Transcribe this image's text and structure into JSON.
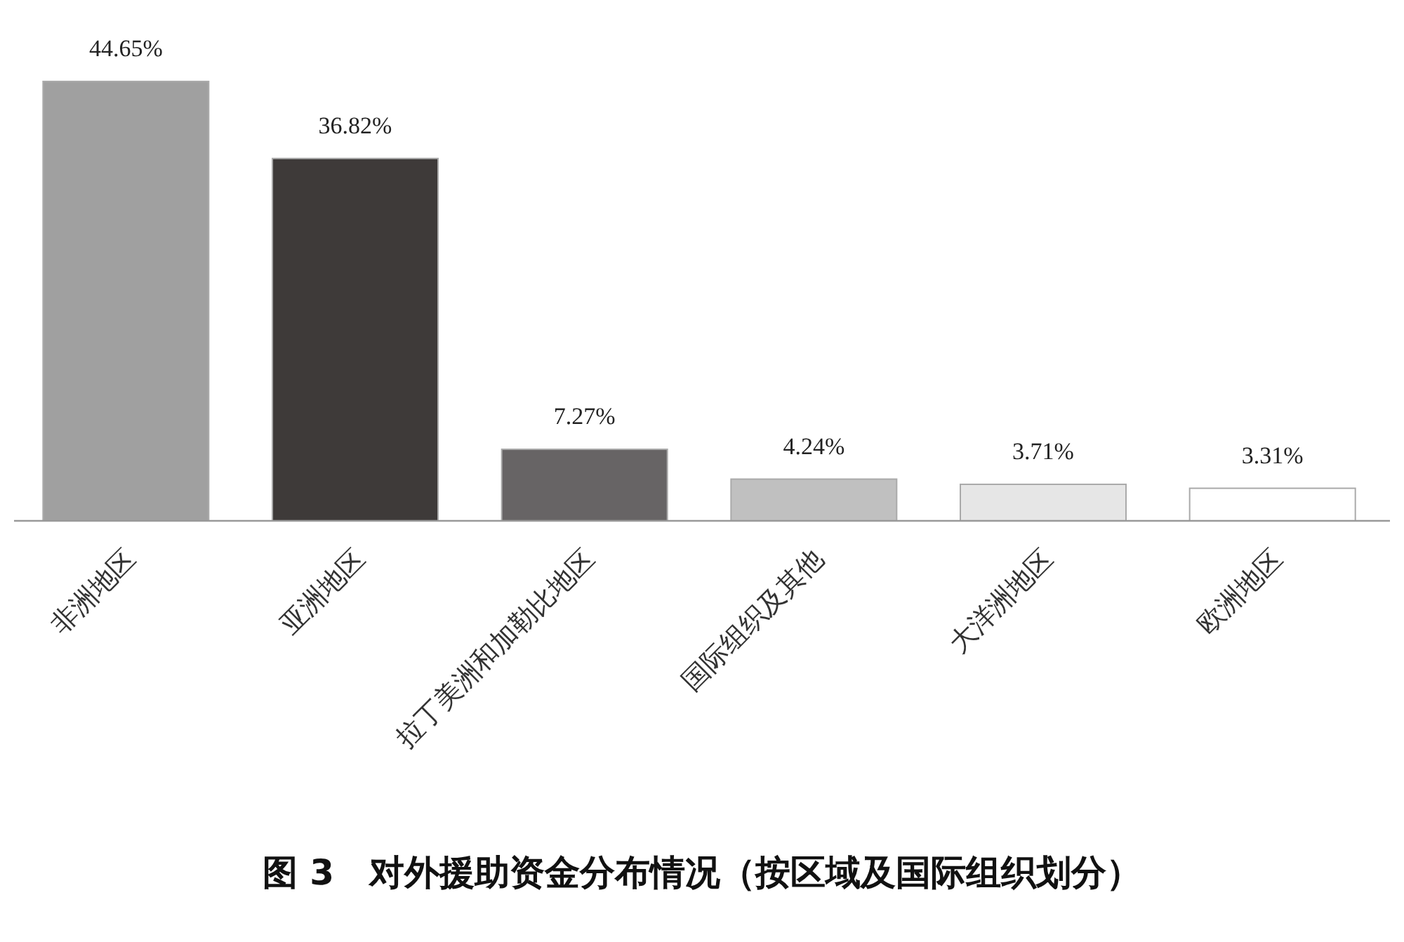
{
  "chart_data": {
    "type": "bar",
    "title": "图 3　对外援助资金分布情况（按区域及国际组织划分）",
    "categories": [
      "非洲地区",
      "亚洲地区",
      "拉丁美洲和加勒比地区",
      "国际组织及其他",
      "大洋洲地区",
      "欧洲地区"
    ],
    "values": [
      44.65,
      36.82,
      7.27,
      4.24,
      3.71,
      3.31
    ],
    "colors": [
      "#a0a0a0",
      "#3e3a39",
      "#676465",
      "#c0c0c0",
      "#e6e6e6",
      "#ffffff"
    ],
    "value_labels": [
      "44.65%",
      "36.82%",
      "7.27%",
      "4.24%",
      "3.71%",
      "3.31%"
    ],
    "data_labels": false
  }
}
